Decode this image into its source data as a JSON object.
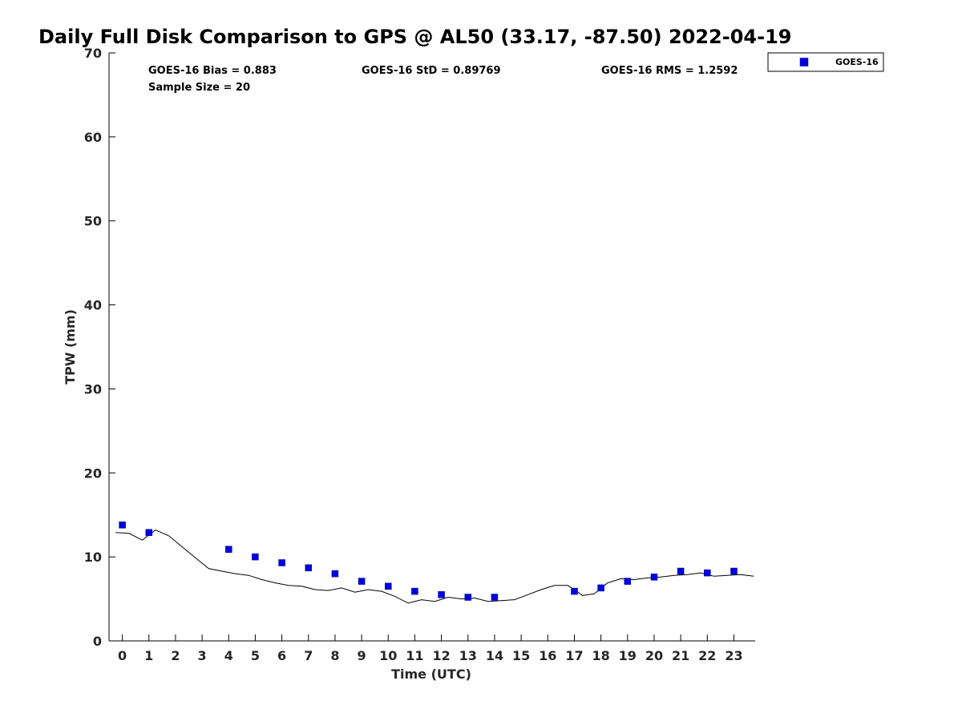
{
  "chart_data": {
    "type": "scatter",
    "title": "Daily Full Disk Comparison to GPS @ AL50 (33.17, -87.50) 2022-04-19",
    "xlabel": "Time (UTC)",
    "ylabel": "TPW (mm)",
    "xlim": [
      -0.5,
      23.8
    ],
    "ylim": [
      0,
      70
    ],
    "x_ticks": [
      "0",
      "1",
      "2",
      "3",
      "4",
      "5",
      "6",
      "7",
      "8",
      "9",
      "10",
      "11",
      "12",
      "13",
      "14",
      "15",
      "16",
      "17",
      "18",
      "19",
      "20",
      "21",
      "22",
      "23"
    ],
    "y_ticks": [
      "0",
      "10",
      "20",
      "30",
      "40",
      "50",
      "60",
      "70"
    ],
    "grid": false,
    "legend_position": "top-right",
    "stats": {
      "bias": "GOES-16 Bias = 0.883",
      "std": "GOES-16 StD = 0.89769",
      "rms": "GOES-16 RMS = 1.2592",
      "sample": "Sample Size = 20"
    },
    "series": [
      {
        "name": "GOES-16",
        "marker": "square",
        "color": "#0000dd",
        "points": [
          [
            0,
            13.8
          ],
          [
            1,
            12.9
          ],
          [
            4,
            10.9
          ],
          [
            5,
            10.0
          ],
          [
            6,
            9.3
          ],
          [
            7,
            8.7
          ],
          [
            8,
            8.0
          ],
          [
            9,
            7.1
          ],
          [
            10,
            6.5
          ],
          [
            11,
            5.9
          ],
          [
            12,
            5.5
          ],
          [
            13,
            5.2
          ],
          [
            14,
            5.2
          ],
          [
            17,
            5.9
          ],
          [
            18,
            6.3
          ],
          [
            19,
            7.1
          ],
          [
            20,
            7.6
          ],
          [
            21,
            8.3
          ],
          [
            22,
            8.1
          ],
          [
            23,
            8.3
          ]
        ]
      },
      {
        "marker": "line",
        "color": "#000000",
        "points": [
          [
            -0.25,
            12.9
          ],
          [
            0.25,
            12.8
          ],
          [
            0.75,
            12.0
          ],
          [
            1.25,
            13.2
          ],
          [
            1.75,
            12.5
          ],
          [
            2.25,
            11.2
          ],
          [
            2.75,
            9.9
          ],
          [
            3.25,
            8.6
          ],
          [
            3.75,
            8.3
          ],
          [
            4.25,
            8.0
          ],
          [
            4.75,
            7.8
          ],
          [
            5.25,
            7.3
          ],
          [
            5.75,
            6.9
          ],
          [
            6.25,
            6.6
          ],
          [
            6.75,
            6.5
          ],
          [
            7.25,
            6.1
          ],
          [
            7.75,
            6.0
          ],
          [
            8.25,
            6.3
          ],
          [
            8.75,
            5.8
          ],
          [
            9.25,
            6.1
          ],
          [
            9.75,
            5.9
          ],
          [
            10.25,
            5.3
          ],
          [
            10.75,
            4.5
          ],
          [
            11.25,
            4.9
          ],
          [
            11.75,
            4.7
          ],
          [
            12.25,
            5.2
          ],
          [
            12.75,
            5.0
          ],
          [
            13.25,
            5.1
          ],
          [
            13.75,
            4.7
          ],
          [
            14.25,
            4.8
          ],
          [
            14.75,
            4.9
          ],
          [
            15.25,
            5.5
          ],
          [
            15.75,
            6.1
          ],
          [
            16.25,
            6.6
          ],
          [
            16.75,
            6.6
          ],
          [
            17.1,
            5.9
          ],
          [
            17.3,
            5.4
          ],
          [
            17.75,
            5.6
          ],
          [
            18.25,
            6.9
          ],
          [
            18.75,
            7.4
          ],
          [
            19.25,
            7.3
          ],
          [
            19.75,
            7.5
          ],
          [
            20.25,
            7.6
          ],
          [
            20.75,
            7.8
          ],
          [
            21.25,
            7.9
          ],
          [
            21.75,
            8.1
          ],
          [
            22.25,
            7.7
          ],
          [
            22.75,
            7.8
          ],
          [
            23.25,
            7.9
          ],
          [
            23.75,
            7.7
          ]
        ]
      }
    ]
  }
}
